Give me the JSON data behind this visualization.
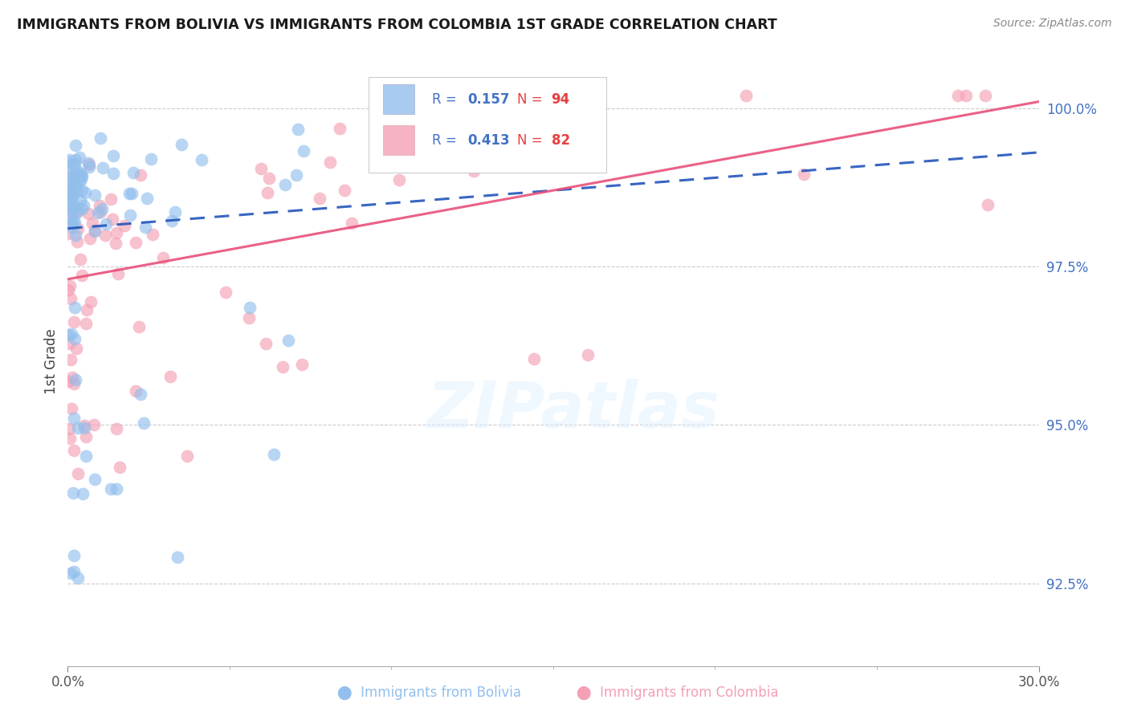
{
  "title": "IMMIGRANTS FROM BOLIVIA VS IMMIGRANTS FROM COLOMBIA 1ST GRADE CORRELATION CHART",
  "source": "Source: ZipAtlas.com",
  "ylabel": "1st Grade",
  "right_yticks": [
    92.5,
    95.0,
    97.5,
    100.0
  ],
  "right_ytick_labels": [
    "92.5%",
    "95.0%",
    "97.5%",
    "100.0%"
  ],
  "xmin": 0.0,
  "xmax": 30.0,
  "ymin": 91.2,
  "ymax": 100.8,
  "bolivia_R": 0.157,
  "bolivia_N": 94,
  "colombia_R": 0.413,
  "colombia_N": 82,
  "bolivia_color": "#92bfed",
  "colombia_color": "#f4a0b5",
  "bolivia_line_color": "#2255bb",
  "colombia_line_color": "#e8507a",
  "watermark_text": "ZIPatlas",
  "background_color": "#ffffff",
  "xtick_positions": [
    0.0,
    30.0
  ],
  "xtick_labels": [
    "0.0%",
    "30.0%"
  ],
  "bolivia_trend_x": [
    0.0,
    30.0
  ],
  "bolivia_trend_y": [
    98.1,
    99.3
  ],
  "colombia_trend_x": [
    0.0,
    30.0
  ],
  "colombia_trend_y": [
    97.3,
    100.1
  ]
}
